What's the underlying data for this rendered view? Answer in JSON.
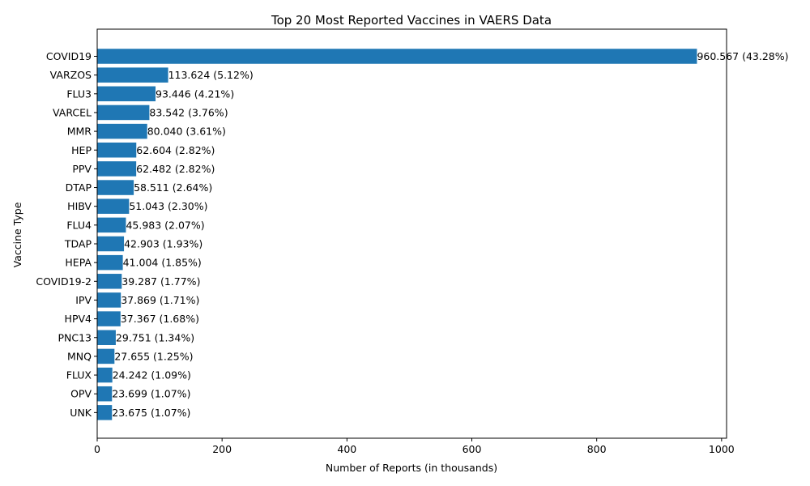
{
  "chart_data": {
    "type": "bar",
    "orientation": "horizontal",
    "title": "Top 20 Most Reported Vaccines in VAERS Data",
    "xlabel": "Number of Reports (in thousands)",
    "ylabel": "Vaccine Type",
    "xlim": [
      0,
      1008
    ],
    "xticks": [
      0,
      200,
      400,
      600,
      800,
      1000
    ],
    "grid": false,
    "bar_color": "#1f77b4",
    "categories": [
      "COVID19",
      "VARZOS",
      "FLU3",
      "VARCEL",
      "MMR",
      "HEP",
      "PPV",
      "DTAP",
      "HIBV",
      "FLU4",
      "TDAP",
      "HEPA",
      "COVID19-2",
      "IPV",
      "HPV4",
      "PNC13",
      "MNQ",
      "FLUX",
      "OPV",
      "UNK"
    ],
    "values": [
      960.567,
      113.624,
      93.446,
      83.542,
      80.04,
      62.604,
      62.482,
      58.511,
      51.043,
      45.983,
      42.903,
      41.004,
      39.287,
      37.869,
      37.367,
      29.751,
      27.655,
      24.242,
      23.699,
      23.675
    ],
    "labels": [
      "960.567 (43.28%)",
      "113.624 (5.12%)",
      "93.446 (4.21%)",
      "83.542 (3.76%)",
      "80.040 (3.61%)",
      "62.604 (2.82%)",
      "62.482 (2.82%)",
      "58.511 (2.64%)",
      "51.043 (2.30%)",
      "45.983 (2.07%)",
      "42.903 (1.93%)",
      "41.004 (1.85%)",
      "39.287 (1.77%)",
      "37.869 (1.71%)",
      "37.367 (1.68%)",
      "29.751 (1.34%)",
      "27.655 (1.25%)",
      "24.242 (1.09%)",
      "23.699 (1.07%)",
      "23.675 (1.07%)"
    ]
  }
}
